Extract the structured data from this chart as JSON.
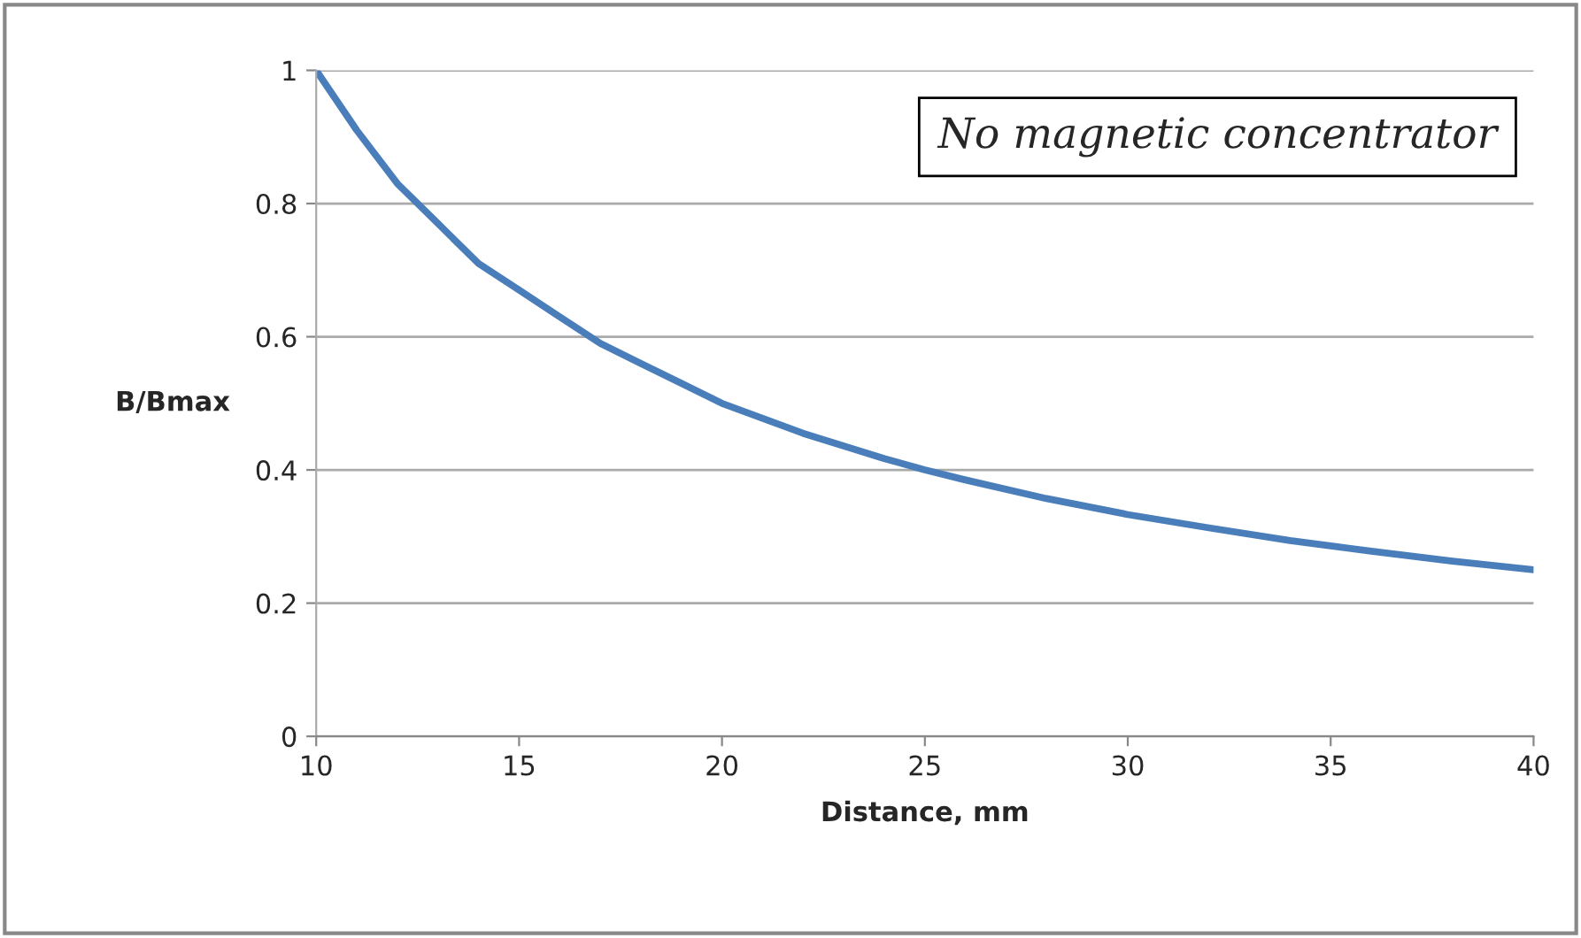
{
  "chart_data": {
    "type": "line",
    "xlabel": "Distance, mm",
    "ylabel": "B/Bmax",
    "annotations": [
      "No magnetic concentrator"
    ],
    "x": [
      10,
      11,
      12,
      12.5,
      13,
      14,
      15,
      16,
      17,
      18,
      20,
      22,
      24,
      25,
      26,
      28,
      30,
      32,
      34,
      35,
      36,
      38,
      40
    ],
    "series": [
      {
        "color": "#4a7ebb",
        "values": [
          1,
          0.91,
          0.83,
          0.8,
          0.77,
          0.71,
          0.67,
          0.63,
          0.59,
          0.56,
          0.5,
          0.455,
          0.417,
          0.4,
          0.385,
          0.357,
          0.333,
          0.313,
          0.294,
          0.286,
          0.278,
          0.263,
          0.25
        ]
      }
    ],
    "xlim": [
      10,
      40
    ],
    "ylim": [
      0,
      1
    ],
    "xticks": [
      10,
      15,
      20,
      25,
      30,
      35,
      40
    ],
    "yticks": [
      0,
      0.2,
      0.4,
      0.6,
      0.8,
      1
    ],
    "grid": "y",
    "marker": "none",
    "line_style": "solid"
  }
}
